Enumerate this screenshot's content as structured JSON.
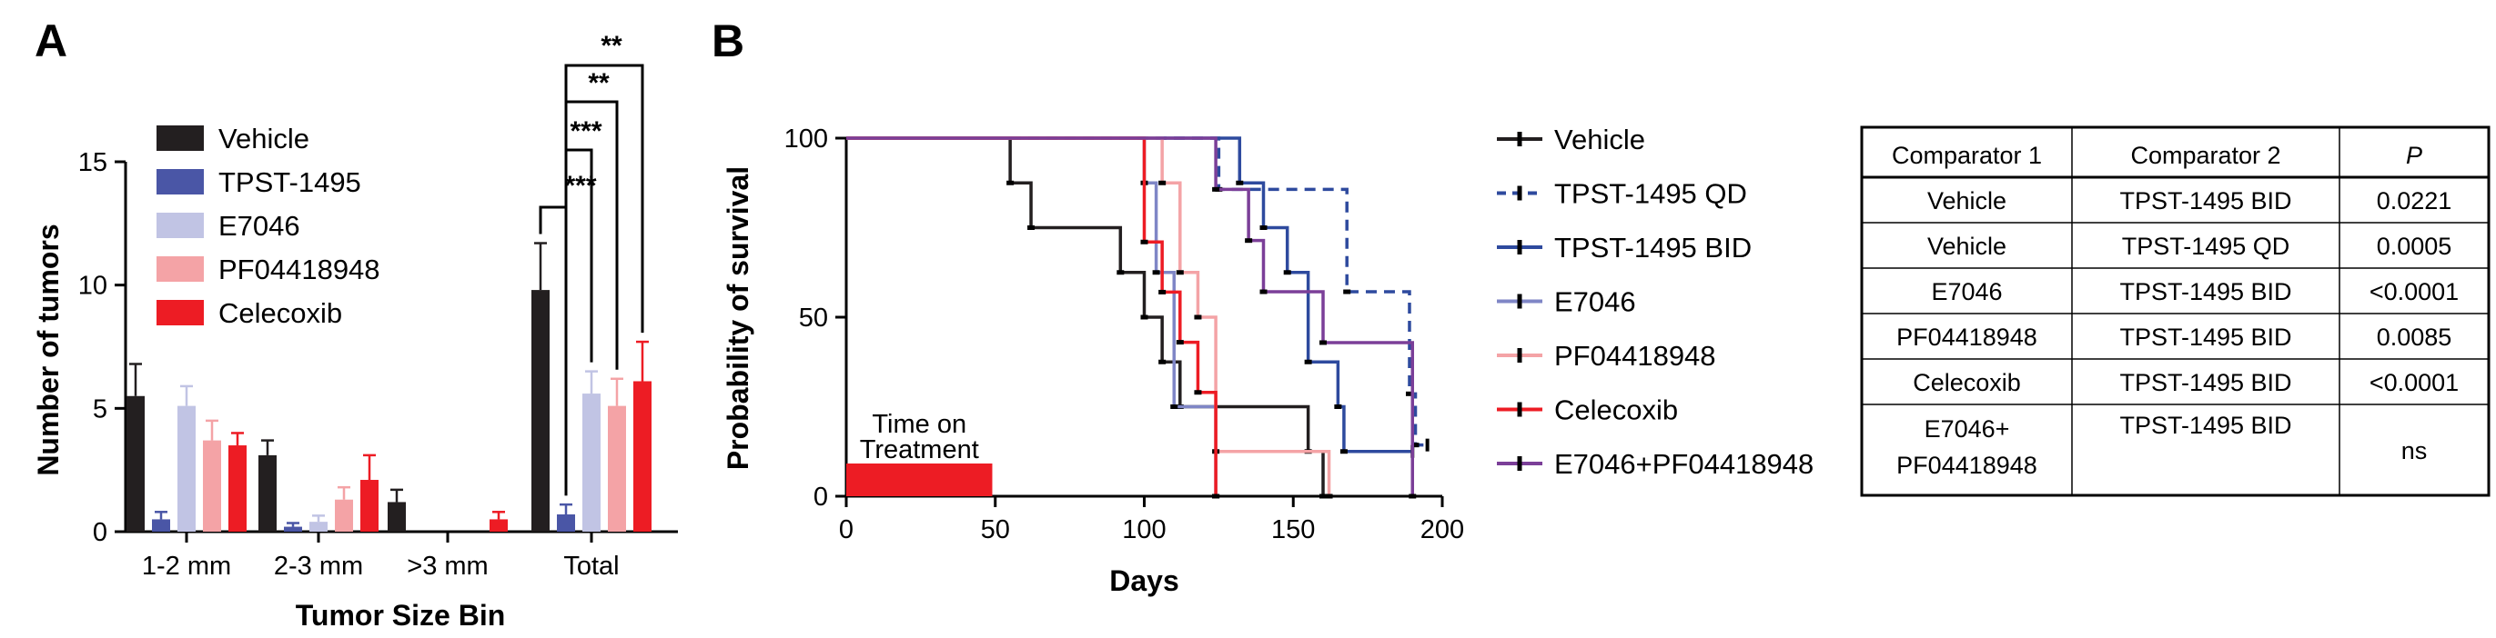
{
  "panels": {
    "a": "A",
    "b": "B"
  },
  "chart_data": [
    {
      "type": "bar",
      "xlabel": "Tumor Size  Bin",
      "ylabel": "Number of tumors",
      "categories": [
        "1-2 mm",
        "2-3 mm",
        ">3 mm",
        "Total"
      ],
      "ylim": [
        0,
        15
      ],
      "yticks": [
        0,
        5,
        10,
        15
      ],
      "legend_position": "top-left",
      "series": [
        {
          "name": "Vehicle",
          "color": "#231f20",
          "values": [
            5.5,
            3.1,
            1.2,
            9.8
          ],
          "errors": [
            1.3,
            0.6,
            0.5,
            1.9
          ]
        },
        {
          "name": "TPST-1495",
          "color": "#4a56a6",
          "values": [
            0.5,
            0.2,
            0.0,
            0.7
          ],
          "errors": [
            0.3,
            0.15,
            0.0,
            0.4
          ]
        },
        {
          "name": "E7046",
          "color": "#c1c4e4",
          "values": [
            5.1,
            0.4,
            0.0,
            5.6
          ],
          "errors": [
            0.8,
            0.25,
            0.0,
            0.9
          ]
        },
        {
          "name": "PF04418948",
          "color": "#f4a3a6",
          "values": [
            3.7,
            1.3,
            0.0,
            5.1
          ],
          "errors": [
            0.8,
            0.5,
            0.0,
            1.1
          ]
        },
        {
          "name": "Celecoxib",
          "color": "#ed1c24",
          "values": [
            3.5,
            2.1,
            0.5,
            6.1
          ],
          "errors": [
            0.5,
            1.0,
            0.3,
            1.6
          ]
        }
      ],
      "significance": [
        {
          "from": "Vehicle",
          "to": "TPST-1495",
          "label": "***"
        },
        {
          "from": "TPST-1495",
          "to": "E7046",
          "label": "***"
        },
        {
          "from": "TPST-1495",
          "to": "PF04418948",
          "label": "**"
        },
        {
          "from": "TPST-1495",
          "to": "Celecoxib",
          "label": "**"
        }
      ]
    },
    {
      "type": "line",
      "subtype": "survival-step",
      "xlabel": "Days",
      "ylabel": "Probability of survival",
      "xlim": [
        0,
        200
      ],
      "ylim": [
        0,
        100
      ],
      "xticks": [
        0,
        50,
        100,
        150,
        200
      ],
      "yticks": [
        0,
        50,
        100
      ],
      "treatment_window": {
        "label_line1": "Time on",
        "label_line2": "Treatment",
        "x": [
          0,
          49
        ],
        "color": "#ed1c24"
      },
      "legend_position": "right",
      "series": [
        {
          "name": "Vehicle",
          "color": "#231f20",
          "dashed": false,
          "steps": [
            [
              0,
              100
            ],
            [
              55,
              87.5
            ],
            [
              62,
              75
            ],
            [
              92,
              62.5
            ],
            [
              100,
              50
            ],
            [
              106,
              37.5
            ],
            [
              112,
              25
            ],
            [
              155,
              12.5
            ],
            [
              160,
              0
            ]
          ],
          "censors": []
        },
        {
          "name": "TPST-1495 QD",
          "color": "#2e4a9e",
          "dashed": true,
          "steps": [
            [
              0,
              100
            ],
            [
              125,
              85.7
            ],
            [
              168,
              57.1
            ],
            [
              189,
              28.6
            ],
            [
              191,
              14.3
            ]
          ],
          "censors": [
            [
              195,
              14.3
            ]
          ]
        },
        {
          "name": "TPST-1495 BID",
          "color": "#2e4a9e",
          "dashed": false,
          "steps": [
            [
              0,
              100
            ],
            [
              132,
              87.5
            ],
            [
              140,
              75
            ],
            [
              148,
              62.5
            ],
            [
              155,
              37.5
            ],
            [
              165,
              25
            ],
            [
              167,
              12.5
            ]
          ],
          "censors": [
            [
              190,
              12.5
            ]
          ]
        },
        {
          "name": "E7046",
          "color": "#7f86c6",
          "dashed": false,
          "steps": [
            [
              0,
              100
            ],
            [
              100,
              87.5
            ],
            [
              104,
              62.5
            ],
            [
              110,
              25
            ],
            [
              124,
              0
            ]
          ],
          "censors": []
        },
        {
          "name": "PF04418948",
          "color": "#f4a3a6",
          "dashed": false,
          "steps": [
            [
              0,
              100
            ],
            [
              106,
              87.5
            ],
            [
              112,
              62.5
            ],
            [
              118,
              50
            ],
            [
              124,
              12.5
            ],
            [
              162,
              0
            ]
          ],
          "censors": []
        },
        {
          "name": "Celecoxib",
          "color": "#ed1c24",
          "dashed": false,
          "steps": [
            [
              0,
              100
            ],
            [
              100,
              71
            ],
            [
              106,
              57
            ],
            [
              112,
              43
            ],
            [
              118,
              29
            ],
            [
              124,
              0
            ]
          ],
          "censors": []
        },
        {
          "name": "E7046+PF04418948",
          "color": "#7b3f98",
          "dashed": false,
          "steps": [
            [
              0,
              100
            ],
            [
              124,
              85.7
            ],
            [
              135,
              71.4
            ],
            [
              140,
              57.1
            ],
            [
              160,
              42.9
            ],
            [
              190,
              0
            ]
          ],
          "censors": []
        }
      ]
    },
    {
      "type": "table",
      "columns": [
        "Comparator 1",
        "Comparator 2",
        "P"
      ],
      "rows": [
        [
          "Vehicle",
          "TPST-1495 BID",
          "0.0221"
        ],
        [
          "Vehicle",
          "TPST-1495 QD",
          "0.0005"
        ],
        [
          "E7046",
          "TPST-1495 BID",
          "<0.0001"
        ],
        [
          "PF04418948",
          "TPST-1495 BID",
          "0.0085"
        ],
        [
          "Celecoxib",
          "TPST-1495 BID",
          "<0.0001"
        ],
        [
          "E7046+\nPF04418948",
          "TPST-1495 BID",
          "ns"
        ]
      ]
    }
  ]
}
